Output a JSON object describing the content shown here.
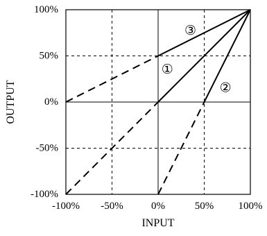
{
  "chart_data": {
    "type": "line",
    "title": "",
    "xlabel": "INPUT",
    "ylabel": "OUTPUT",
    "xlim": [
      -100,
      100
    ],
    "ylim": [
      -100,
      100
    ],
    "grid": true,
    "x_tick_labels": [
      "-100%",
      "-50%",
      "0%",
      "50%",
      "100%"
    ],
    "y_tick_labels": [
      "100%",
      "50%",
      "0%",
      "-50%",
      "-100%"
    ],
    "y_tick_values": [
      100,
      50,
      0,
      -50,
      -100
    ],
    "series": [
      {
        "name": "①",
        "x": [
          -100,
          100
        ],
        "y": [
          -100,
          100
        ],
        "solid_from_x": 0,
        "label_at": [
          10,
          35
        ]
      },
      {
        "name": "②",
        "x": [
          0,
          100
        ],
        "y": [
          -100,
          100
        ],
        "solid_from_x": 50,
        "label_at": [
          73,
          15
        ]
      },
      {
        "name": "③",
        "x": [
          -100,
          100
        ],
        "y": [
          0,
          100
        ],
        "solid_from_x": 0,
        "label_at": [
          35,
          77
        ]
      }
    ]
  },
  "colors": {
    "line": "#000000",
    "background": "#ffffff"
  }
}
